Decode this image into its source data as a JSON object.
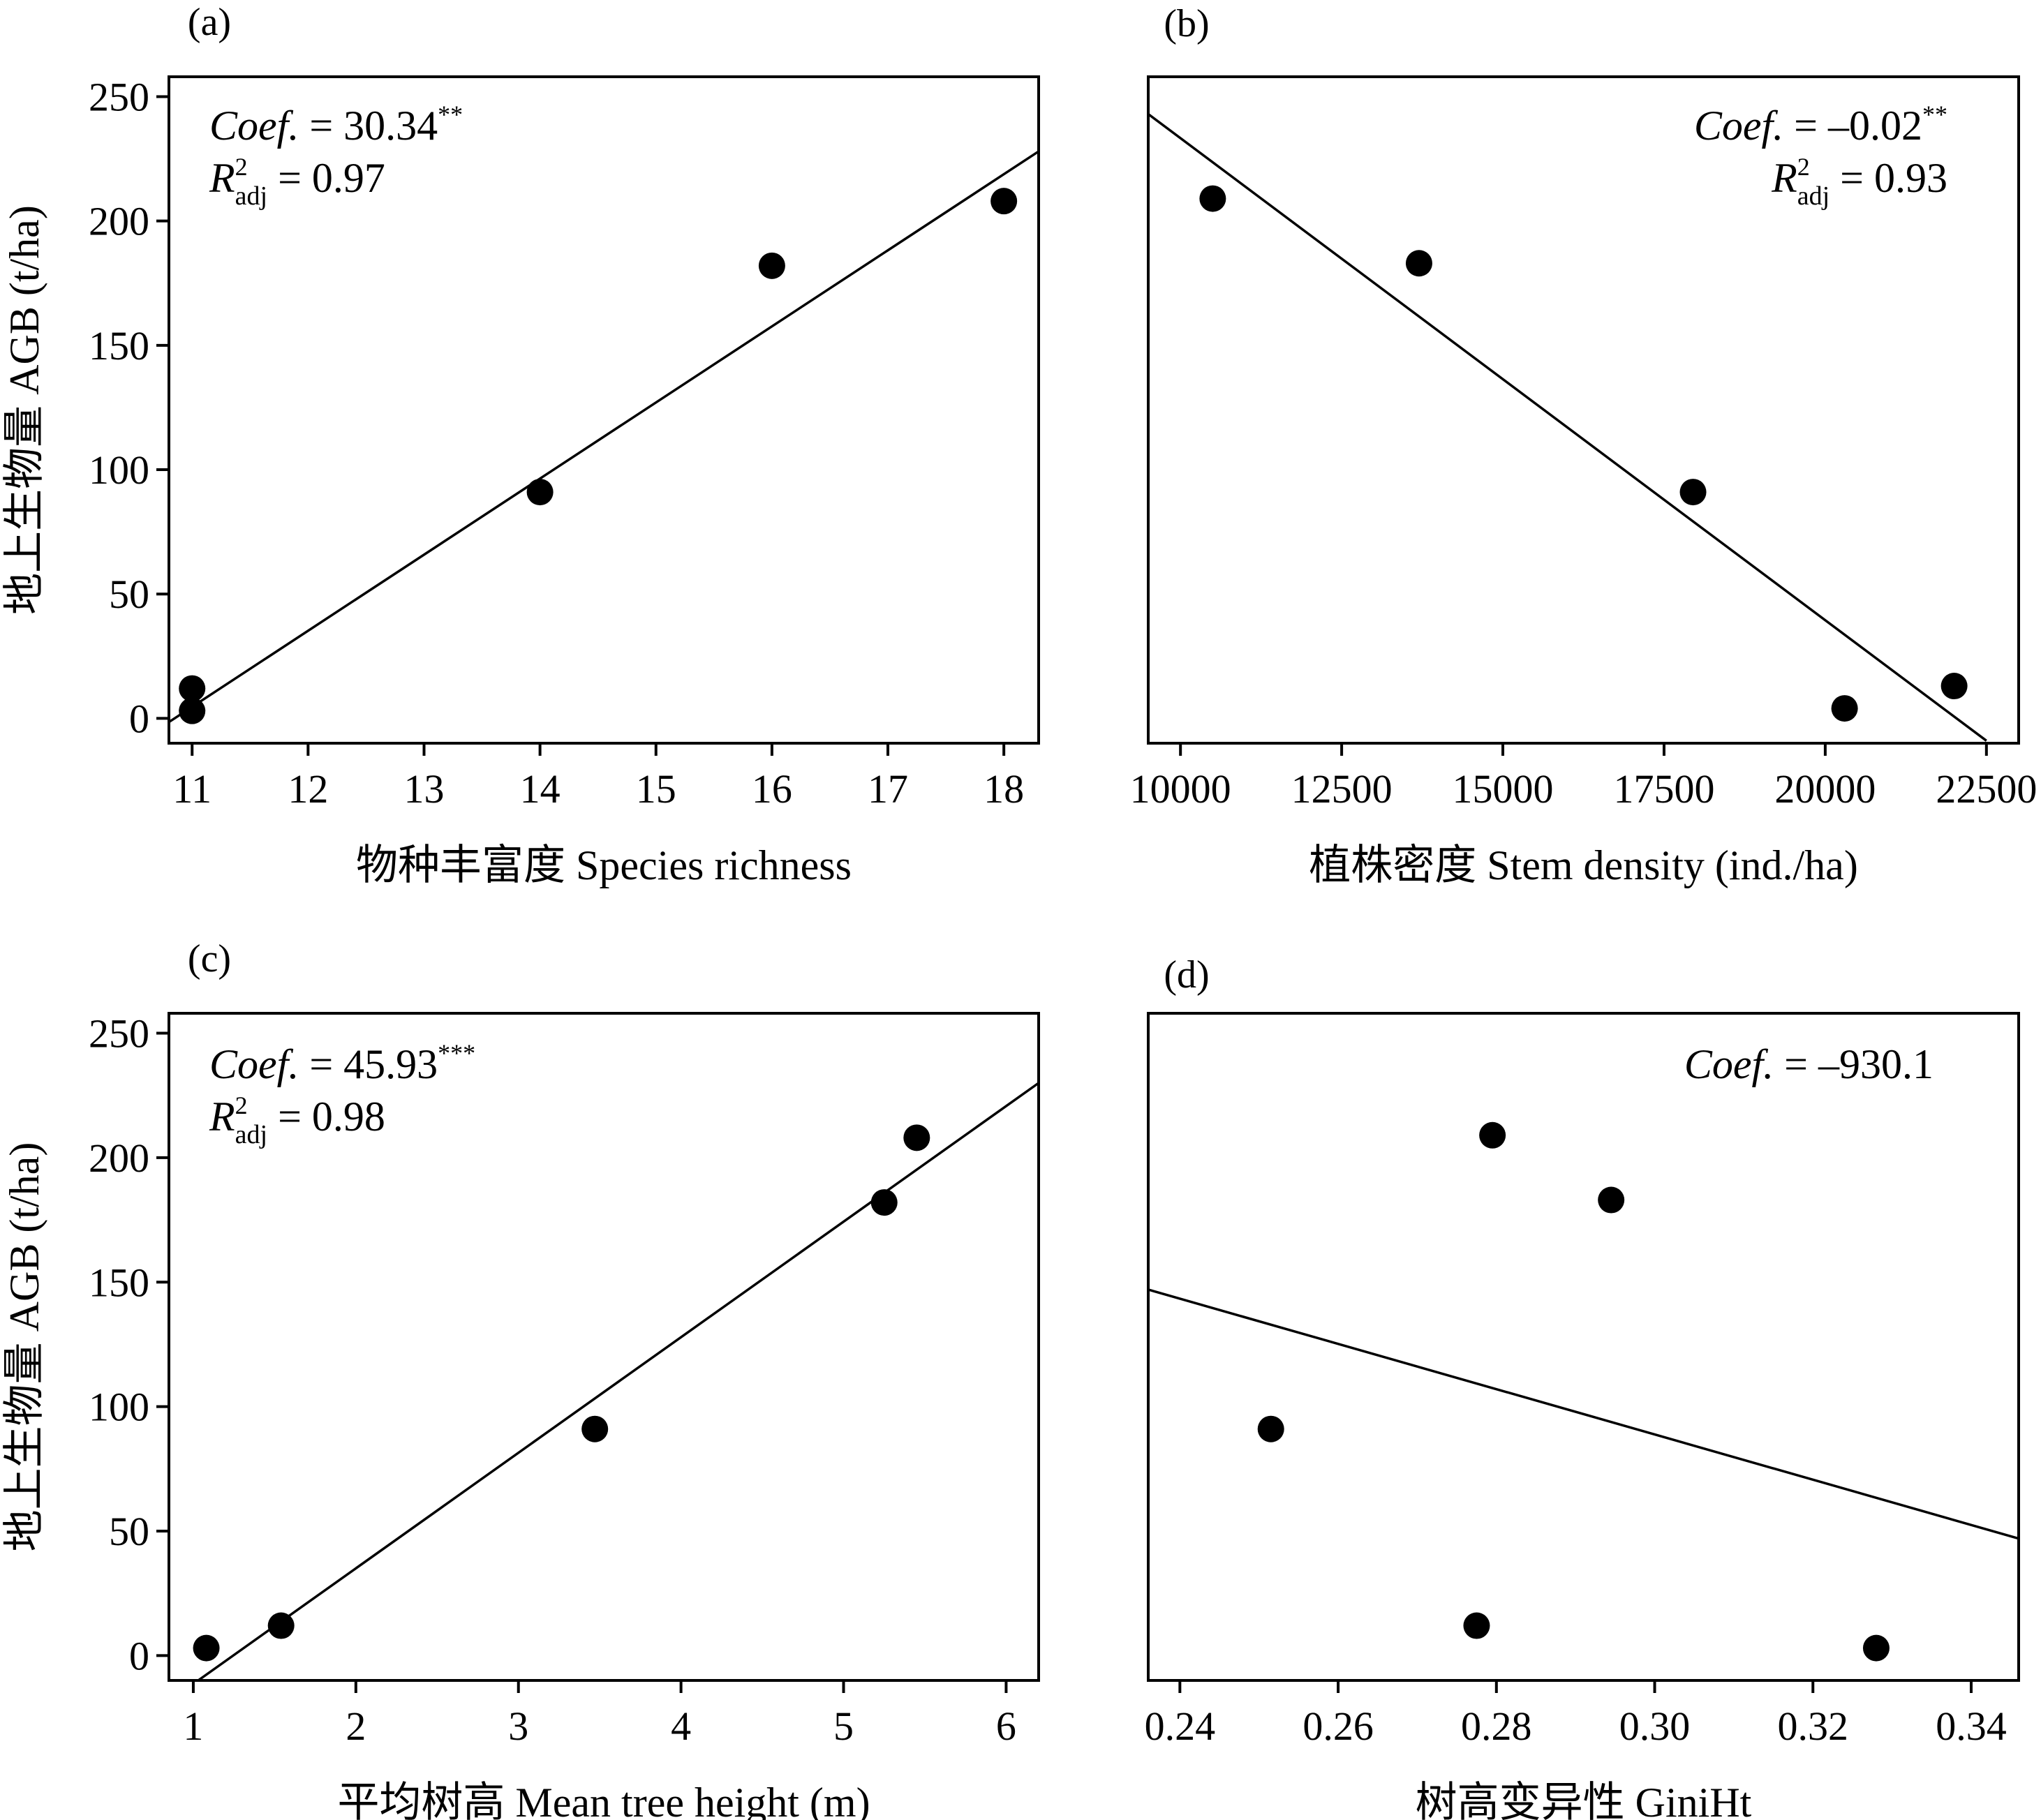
{
  "chart_data": [
    {
      "type": "scatter",
      "panel_label": "(a)",
      "xlabel": "物种丰富度 Species richness",
      "ylabel": "地上生物量 AGB (t/ha)",
      "xlim": [
        10.8,
        18.3
      ],
      "ylim": [
        -10,
        258
      ],
      "xticks": [
        "11",
        "12",
        "13",
        "14",
        "15",
        "16",
        "17",
        "18"
      ],
      "xtick_values": [
        11,
        12,
        13,
        14,
        15,
        16,
        17,
        18
      ],
      "yticks": [
        "0",
        "50",
        "100",
        "150",
        "200",
        "250"
      ],
      "ytick_values": [
        0,
        50,
        100,
        150,
        200,
        250
      ],
      "points": [
        [
          11,
          12
        ],
        [
          11,
          3
        ],
        [
          14,
          91
        ],
        [
          16,
          182
        ],
        [
          18,
          208
        ]
      ],
      "fit_line": [
        [
          10.8,
          -1.5
        ],
        [
          18.3,
          228
        ]
      ],
      "stats": {
        "coef_label": "Coef.",
        "coef_value": "= 30.34",
        "coef_sig": "**",
        "r2_R": "R",
        "r2_sup": "2",
        "r2_sub": "adj",
        "r2_value": "= 0.97"
      },
      "stats_position": "top-left"
    },
    {
      "type": "scatter",
      "panel_label": "(b)",
      "xlabel": "植株密度 Stem density (ind./ha)",
      "ylabel": "",
      "xlim": [
        9500,
        23000
      ],
      "ylim": [
        -10,
        258
      ],
      "xticks": [
        "10000",
        "12500",
        "15000",
        "17500",
        "20000",
        "22500"
      ],
      "xtick_values": [
        10000,
        12500,
        15000,
        17500,
        20000,
        22500
      ],
      "yticks": [],
      "ytick_values": [],
      "points": [
        [
          10500,
          209
        ],
        [
          13700,
          183
        ],
        [
          17950,
          91
        ],
        [
          20300,
          4
        ],
        [
          22000,
          13
        ]
      ],
      "fit_line": [
        [
          9500,
          243
        ],
        [
          22500,
          -9
        ]
      ],
      "stats": {
        "coef_label": "Coef.",
        "coef_value": "= –0.02",
        "coef_sig": "**",
        "r2_R": "R",
        "r2_sup": "2",
        "r2_sub": "adj",
        "r2_value": "= 0.93"
      },
      "stats_position": "top-right"
    },
    {
      "type": "scatter",
      "panel_label": "(c)",
      "xlabel": "平均树高 Mean tree height (m)",
      "ylabel": "地上生物量 AGB (t/ha)",
      "xlim": [
        0.85,
        6.2
      ],
      "ylim": [
        -10,
        258
      ],
      "xticks": [
        "1",
        "2",
        "3",
        "4",
        "5",
        "6"
      ],
      "xtick_values": [
        1,
        2,
        3,
        4,
        5,
        6
      ],
      "yticks": [
        "0",
        "50",
        "100",
        "150",
        "200",
        "250"
      ],
      "ytick_values": [
        0,
        50,
        100,
        150,
        200,
        250
      ],
      "points": [
        [
          1.08,
          3
        ],
        [
          1.54,
          12
        ],
        [
          3.47,
          91
        ],
        [
          5.25,
          182
        ],
        [
          5.45,
          208
        ]
      ],
      "fit_line": [
        [
          1.03,
          -10
        ],
        [
          6.2,
          230
        ]
      ],
      "stats": {
        "coef_label": "Coef.",
        "coef_value": "= 45.93",
        "coef_sig": "***",
        "r2_R": "R",
        "r2_sup": "2",
        "r2_sub": "adj",
        "r2_value": "= 0.98"
      },
      "stats_position": "top-left"
    },
    {
      "type": "scatter",
      "panel_label": "(d)",
      "xlabel": "树高变异性 GiniHt",
      "ylabel": "",
      "xlim": [
        0.236,
        0.346
      ],
      "ylim": [
        -10,
        258
      ],
      "xticks": [
        "0.24",
        "0.26",
        "0.28",
        "0.30",
        "0.32",
        "0.34"
      ],
      "xtick_values": [
        0.24,
        0.26,
        0.28,
        0.3,
        0.32,
        0.34
      ],
      "yticks": [],
      "ytick_values": [],
      "points": [
        [
          0.2515,
          91
        ],
        [
          0.2775,
          12
        ],
        [
          0.2795,
          209
        ],
        [
          0.2945,
          183
        ],
        [
          0.328,
          3
        ]
      ],
      "fit_line": [
        [
          0.236,
          147
        ],
        [
          0.346,
          47
        ]
      ],
      "stats": {
        "coef_label": "Coef.",
        "coef_value": "= –930.1",
        "coef_sig": "",
        "r2_R": "",
        "r2_sup": "",
        "r2_sub": "",
        "r2_value": ""
      },
      "stats_position": "top-right"
    }
  ]
}
